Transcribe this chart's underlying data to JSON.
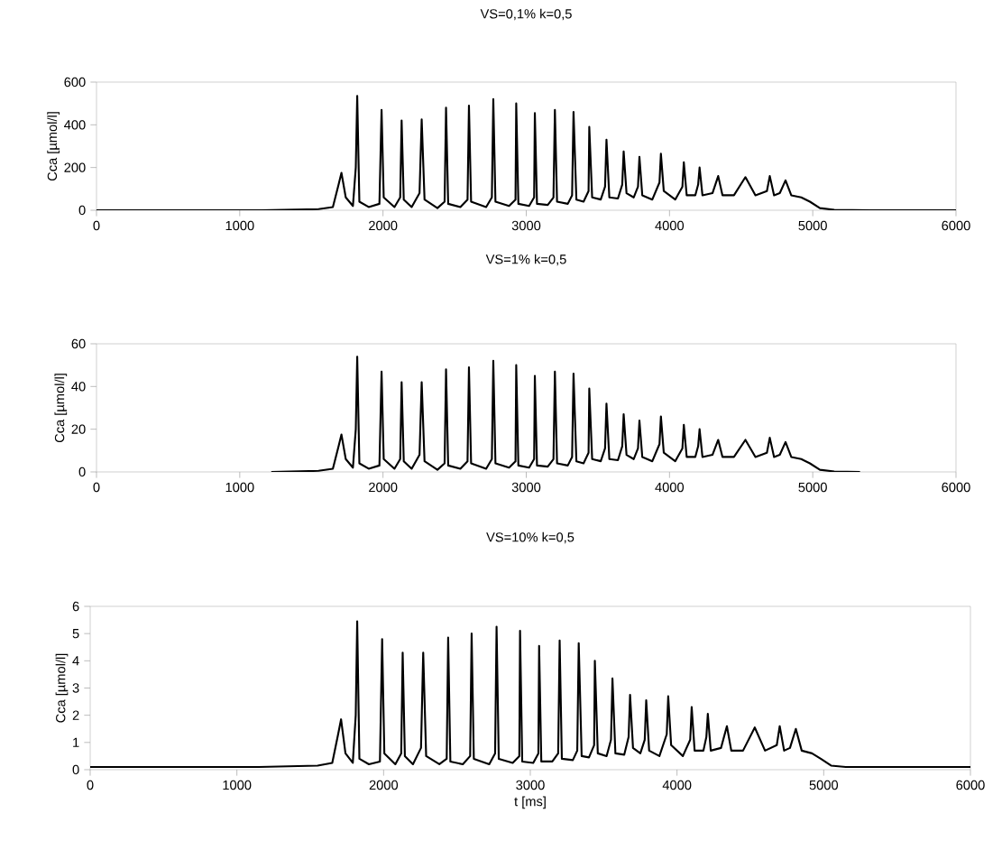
{
  "chart_data": [
    {
      "type": "line",
      "title": "VS=0,1% k=0,5",
      "ylabel": "Cca [µmol/l]",
      "color": "#000000",
      "xlim": [
        0,
        6000
      ],
      "ylim": [
        0,
        600
      ],
      "xticks": [
        0,
        1000,
        2000,
        3000,
        4000,
        5000,
        6000
      ],
      "yticks": [
        0,
        200,
        400,
        600
      ],
      "x": [
        0,
        1150,
        1550,
        1650,
        1690,
        1710,
        1740,
        1790,
        1810,
        1820,
        1835,
        1900,
        1975,
        1990,
        2005,
        2080,
        2120,
        2130,
        2145,
        2200,
        2255,
        2270,
        2290,
        2380,
        2430,
        2440,
        2455,
        2540,
        2590,
        2600,
        2615,
        2720,
        2760,
        2770,
        2785,
        2880,
        2925,
        2930,
        2945,
        3020,
        3055,
        3060,
        3075,
        3150,
        3190,
        3200,
        3215,
        3290,
        3320,
        3330,
        3350,
        3400,
        3435,
        3440,
        3460,
        3520,
        3550,
        3560,
        3580,
        3640,
        3670,
        3680,
        3700,
        3750,
        3780,
        3790,
        3810,
        3880,
        3930,
        3940,
        3960,
        4040,
        4090,
        4100,
        4120,
        4180,
        4200,
        4210,
        4230,
        4300,
        4340,
        4370,
        4450,
        4530,
        4600,
        4680,
        4700,
        4730,
        4770,
        4810,
        4850,
        4920,
        4980,
        5050,
        5150,
        5400,
        6000
      ],
      "values": [
        0,
        0,
        5,
        15,
        120,
        175,
        60,
        20,
        200,
        535,
        40,
        15,
        30,
        470,
        60,
        15,
        60,
        420,
        50,
        15,
        80,
        425,
        50,
        10,
        40,
        480,
        30,
        15,
        50,
        490,
        40,
        15,
        60,
        520,
        40,
        20,
        50,
        500,
        30,
        20,
        60,
        455,
        30,
        25,
        60,
        470,
        40,
        30,
        70,
        460,
        50,
        40,
        90,
        390,
        60,
        50,
        110,
        330,
        60,
        55,
        120,
        275,
        80,
        60,
        110,
        250,
        70,
        50,
        130,
        265,
        90,
        50,
        110,
        225,
        70,
        70,
        120,
        200,
        70,
        80,
        160,
        70,
        70,
        155,
        70,
        90,
        160,
        70,
        80,
        140,
        70,
        60,
        40,
        10,
        2,
        0,
        0
      ]
    },
    {
      "type": "line",
      "title": "VS=1% k=0,5",
      "ylabel": "Cca [µmol/l]",
      "color": "#000000",
      "xlim": [
        0,
        6000
      ],
      "ylim": [
        0,
        60
      ],
      "xticks": [
        0,
        1000,
        2000,
        3000,
        4000,
        5000,
        6000
      ],
      "yticks": [
        0,
        20,
        40,
        60
      ],
      "x": [
        1220,
        1550,
        1650,
        1690,
        1710,
        1740,
        1790,
        1810,
        1820,
        1835,
        1900,
        1975,
        1990,
        2005,
        2080,
        2120,
        2130,
        2145,
        2200,
        2255,
        2270,
        2290,
        2380,
        2430,
        2440,
        2455,
        2540,
        2590,
        2600,
        2615,
        2720,
        2760,
        2770,
        2785,
        2880,
        2925,
        2930,
        2945,
        3020,
        3055,
        3060,
        3075,
        3150,
        3190,
        3200,
        3215,
        3290,
        3320,
        3330,
        3350,
        3400,
        3435,
        3440,
        3460,
        3520,
        3550,
        3560,
        3580,
        3640,
        3670,
        3680,
        3700,
        3750,
        3780,
        3790,
        3810,
        3880,
        3930,
        3940,
        3960,
        4040,
        4090,
        4100,
        4120,
        4180,
        4200,
        4210,
        4230,
        4300,
        4340,
        4370,
        4450,
        4530,
        4600,
        4680,
        4700,
        4730,
        4770,
        4810,
        4850,
        4920,
        4980,
        5050,
        5150,
        5330
      ],
      "values": [
        0,
        0.5,
        1.5,
        12,
        17.5,
        6,
        2,
        20,
        54,
        4,
        1.5,
        3,
        47,
        6,
        1.5,
        6,
        42,
        5,
        1.5,
        8,
        42,
        5,
        1,
        4,
        48,
        3,
        1.5,
        5,
        49,
        4,
        1.5,
        6,
        52,
        4,
        2,
        5,
        50,
        3,
        2,
        6,
        45,
        3,
        2.5,
        6,
        47,
        4,
        3,
        7,
        46,
        5,
        4,
        9,
        39,
        6,
        5,
        11,
        32,
        6,
        5.5,
        12,
        27,
        8,
        6,
        11,
        24,
        7,
        5,
        13,
        26,
        9,
        5,
        11,
        22,
        7,
        7,
        12,
        20,
        7,
        8,
        15,
        7,
        7,
        15,
        7,
        9,
        16,
        7,
        8,
        14,
        7,
        6,
        4,
        1,
        0.2,
        0
      ]
    },
    {
      "type": "line",
      "title": "VS=10% k=0,5",
      "ylabel": "Cca [µmol/l]",
      "xlabel": "t [ms]",
      "color": "#000000",
      "xlim": [
        0,
        6000
      ],
      "ylim": [
        0,
        6
      ],
      "xticks": [
        0,
        1000,
        2000,
        3000,
        4000,
        5000,
        6000
      ],
      "yticks": [
        0,
        1,
        2,
        3,
        4,
        5,
        6
      ],
      "x": [
        0,
        1150,
        1550,
        1650,
        1690,
        1710,
        1740,
        1790,
        1810,
        1820,
        1835,
        1900,
        1975,
        1990,
        2005,
        2080,
        2120,
        2130,
        2145,
        2200,
        2255,
        2270,
        2290,
        2380,
        2430,
        2440,
        2455,
        2540,
        2590,
        2600,
        2615,
        2720,
        2760,
        2770,
        2785,
        2880,
        2925,
        2930,
        2945,
        3020,
        3055,
        3060,
        3075,
        3150,
        3190,
        3200,
        3215,
        3290,
        3320,
        3330,
        3350,
        3400,
        3435,
        3440,
        3460,
        3520,
        3550,
        3560,
        3580,
        3640,
        3670,
        3680,
        3700,
        3750,
        3780,
        3790,
        3810,
        3880,
        3930,
        3940,
        3960,
        4040,
        4090,
        4100,
        4120,
        4180,
        4200,
        4210,
        4230,
        4300,
        4340,
        4370,
        4450,
        4530,
        4600,
        4680,
        4700,
        4730,
        4770,
        4810,
        4850,
        4920,
        4980,
        5050,
        5150,
        5400,
        6000
      ],
      "values": [
        0.1,
        0.1,
        0.15,
        0.25,
        1.3,
        1.85,
        0.6,
        0.25,
        2,
        5.45,
        0.4,
        0.2,
        0.3,
        4.8,
        0.6,
        0.2,
        0.6,
        4.3,
        0.5,
        0.2,
        0.8,
        4.3,
        0.5,
        0.2,
        0.4,
        4.85,
        0.3,
        0.2,
        0.5,
        5.0,
        0.4,
        0.2,
        0.6,
        5.25,
        0.4,
        0.25,
        0.5,
        5.1,
        0.3,
        0.25,
        0.6,
        4.55,
        0.3,
        0.3,
        0.6,
        4.75,
        0.4,
        0.35,
        0.7,
        4.65,
        0.5,
        0.45,
        0.9,
        4.0,
        0.6,
        0.5,
        1.1,
        3.35,
        0.6,
        0.55,
        1.2,
        2.75,
        0.8,
        0.6,
        1.1,
        2.55,
        0.7,
        0.5,
        1.3,
        2.7,
        0.9,
        0.5,
        1.1,
        2.3,
        0.7,
        0.7,
        1.2,
        2.05,
        0.7,
        0.8,
        1.6,
        0.7,
        0.7,
        1.55,
        0.7,
        0.9,
        1.6,
        0.7,
        0.8,
        1.5,
        0.7,
        0.6,
        0.4,
        0.15,
        0.1,
        0.1,
        0.1
      ]
    }
  ]
}
